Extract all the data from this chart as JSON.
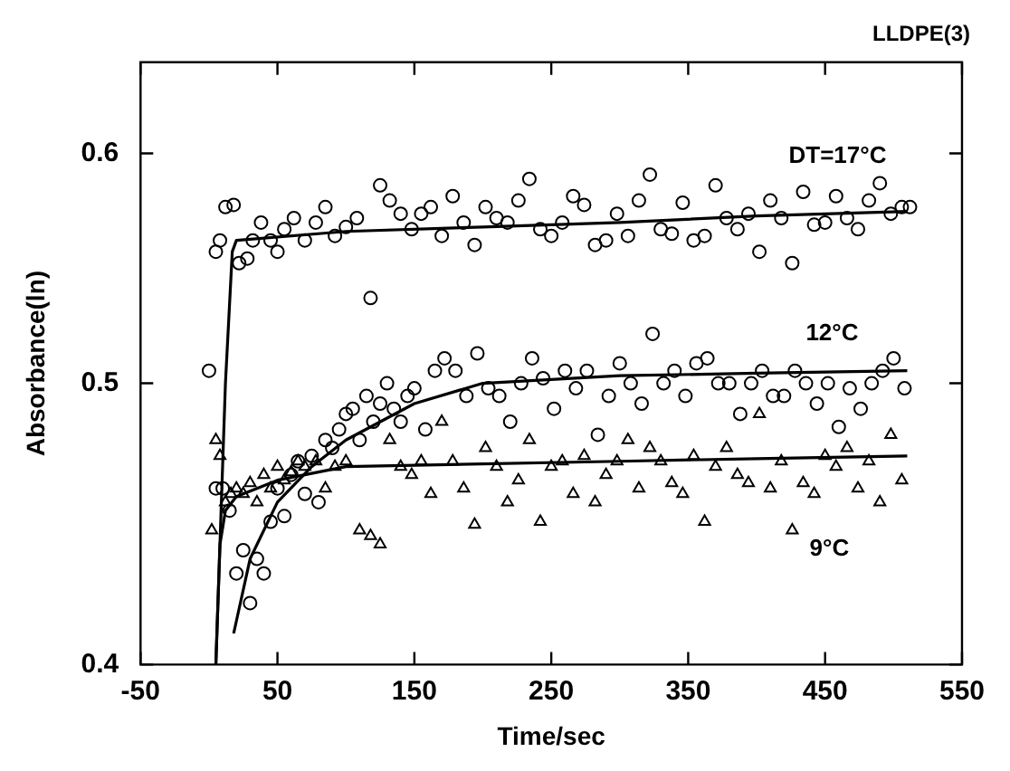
{
  "chart_data": {
    "type": "scatter",
    "title": "LLDPE(3)",
    "xlabel": "Time/sec",
    "ylabel": "Absorbance(ln)",
    "xlim": [
      -50,
      550
    ],
    "xticks": [
      -50,
      50,
      150,
      250,
      350,
      450,
      550
    ],
    "ylim": [
      0.4,
      0.645
    ],
    "yticks": [
      0.4,
      0.5,
      0.6
    ],
    "log": "y",
    "grid": false,
    "legend": false,
    "series": [
      {
        "name": "DT=17°C",
        "color": "#000000",
        "marker": "circle",
        "x": [
          0,
          5,
          8,
          12,
          18,
          22,
          28,
          32,
          38,
          45,
          50,
          55,
          62,
          70,
          78,
          85,
          92,
          100,
          108,
          118,
          125,
          132,
          140,
          148,
          155,
          162,
          170,
          178,
          186,
          194,
          202,
          210,
          218,
          226,
          234,
          242,
          250,
          258,
          266,
          274,
          282,
          290,
          298,
          306,
          314,
          322,
          330,
          338,
          346,
          354,
          362,
          370,
          378,
          386,
          394,
          402,
          410,
          418,
          426,
          434,
          442,
          450,
          458,
          466,
          474,
          482,
          490,
          498,
          506,
          512
        ],
        "values": [
          0.505,
          0.555,
          0.56,
          0.575,
          0.576,
          0.55,
          0.552,
          0.56,
          0.568,
          0.56,
          0.555,
          0.565,
          0.57,
          0.56,
          0.568,
          0.575,
          0.562,
          0.566,
          0.57,
          0.535,
          0.585,
          0.578,
          0.572,
          0.565,
          0.572,
          0.575,
          0.562,
          0.58,
          0.568,
          0.558,
          0.575,
          0.57,
          0.568,
          0.578,
          0.588,
          0.565,
          0.562,
          0.568,
          0.58,
          0.576,
          0.558,
          0.56,
          0.572,
          0.562,
          0.578,
          0.59,
          0.565,
          0.563,
          0.577,
          0.56,
          0.562,
          0.585,
          0.57,
          0.565,
          0.572,
          0.555,
          0.578,
          0.57,
          0.55,
          0.582,
          0.567,
          0.568,
          0.58,
          0.57,
          0.565,
          0.578,
          0.586,
          0.572,
          0.575,
          0.575
        ]
      },
      {
        "name": "12°C",
        "color": "#000000",
        "marker": "circle",
        "x": [
          5,
          10,
          15,
          20,
          25,
          30,
          35,
          40,
          45,
          50,
          55,
          60,
          65,
          70,
          75,
          80,
          85,
          90,
          95,
          100,
          105,
          110,
          115,
          120,
          125,
          130,
          135,
          140,
          145,
          150,
          158,
          165,
          172,
          180,
          188,
          196,
          204,
          212,
          220,
          228,
          236,
          244,
          252,
          260,
          268,
          276,
          284,
          292,
          300,
          308,
          316,
          324,
          332,
          340,
          348,
          356,
          364,
          372,
          380,
          388,
          396,
          404,
          412,
          420,
          428,
          436,
          444,
          452,
          460,
          468,
          476,
          484,
          492,
          500,
          508
        ],
        "values": [
          0.46,
          0.46,
          0.452,
          0.43,
          0.438,
          0.42,
          0.435,
          0.43,
          0.448,
          0.46,
          0.45,
          0.465,
          0.47,
          0.458,
          0.472,
          0.455,
          0.478,
          0.475,
          0.482,
          0.488,
          0.49,
          0.478,
          0.495,
          0.485,
          0.492,
          0.5,
          0.49,
          0.485,
          0.495,
          0.498,
          0.482,
          0.505,
          0.51,
          0.505,
          0.495,
          0.512,
          0.498,
          0.495,
          0.485,
          0.5,
          0.51,
          0.502,
          0.49,
          0.505,
          0.498,
          0.505,
          0.48,
          0.495,
          0.508,
          0.5,
          0.492,
          0.52,
          0.5,
          0.505,
          0.495,
          0.508,
          0.51,
          0.5,
          0.5,
          0.488,
          0.5,
          0.505,
          0.495,
          0.495,
          0.505,
          0.5,
          0.492,
          0.5,
          0.483,
          0.498,
          0.49,
          0.5,
          0.505,
          0.51,
          0.498
        ]
      },
      {
        "name": "9°C",
        "color": "#000000",
        "marker": "triangle",
        "x": [
          2,
          5,
          8,
          12,
          16,
          20,
          25,
          30,
          35,
          40,
          45,
          50,
          55,
          60,
          65,
          70,
          78,
          85,
          92,
          100,
          110,
          118,
          125,
          132,
          140,
          148,
          155,
          162,
          170,
          178,
          186,
          194,
          202,
          210,
          218,
          226,
          234,
          242,
          250,
          258,
          266,
          274,
          282,
          290,
          298,
          306,
          314,
          322,
          330,
          338,
          346,
          354,
          362,
          370,
          378,
          386,
          394,
          402,
          410,
          418,
          426,
          434,
          442,
          450,
          458,
          466,
          474,
          482,
          490,
          498,
          506
        ],
        "values": [
          0.445,
          0.478,
          0.472,
          0.455,
          0.458,
          0.46,
          0.458,
          0.462,
          0.455,
          0.465,
          0.46,
          0.468,
          0.463,
          0.466,
          0.47,
          0.468,
          0.47,
          0.46,
          0.468,
          0.47,
          0.445,
          0.443,
          0.44,
          0.478,
          0.468,
          0.465,
          0.47,
          0.458,
          0.485,
          0.47,
          0.46,
          0.447,
          0.475,
          0.468,
          0.455,
          0.463,
          0.478,
          0.448,
          0.468,
          0.47,
          0.458,
          0.472,
          0.455,
          0.465,
          0.47,
          0.478,
          0.46,
          0.475,
          0.47,
          0.462,
          0.458,
          0.472,
          0.448,
          0.468,
          0.475,
          0.465,
          0.462,
          0.488,
          0.46,
          0.47,
          0.445,
          0.462,
          0.458,
          0.472,
          0.468,
          0.475,
          0.46,
          0.47,
          0.455,
          0.48,
          0.463
        ]
      },
      {
        "type": "line",
        "color": "#000000",
        "x": [
          5,
          12,
          17,
          20,
          100,
          200,
          300,
          400,
          510
        ],
        "values": [
          0.4,
          0.5,
          0.555,
          0.56,
          0.564,
          0.566,
          0.568,
          0.571,
          0.573
        ]
      },
      {
        "type": "line",
        "color": "#000000",
        "x": [
          18,
          30,
          50,
          75,
          100,
          150,
          200,
          300,
          400,
          510
        ],
        "values": [
          0.41,
          0.435,
          0.455,
          0.468,
          0.478,
          0.492,
          0.5,
          0.503,
          0.504,
          0.505
        ]
      },
      {
        "type": "line",
        "color": "#000000",
        "x": [
          5,
          8,
          12,
          20,
          50,
          100,
          200,
          300,
          400,
          510
        ],
        "values": [
          0.4,
          0.44,
          0.452,
          0.457,
          0.463,
          0.468,
          0.469,
          0.47,
          0.471,
          0.472
        ]
      }
    ]
  }
}
